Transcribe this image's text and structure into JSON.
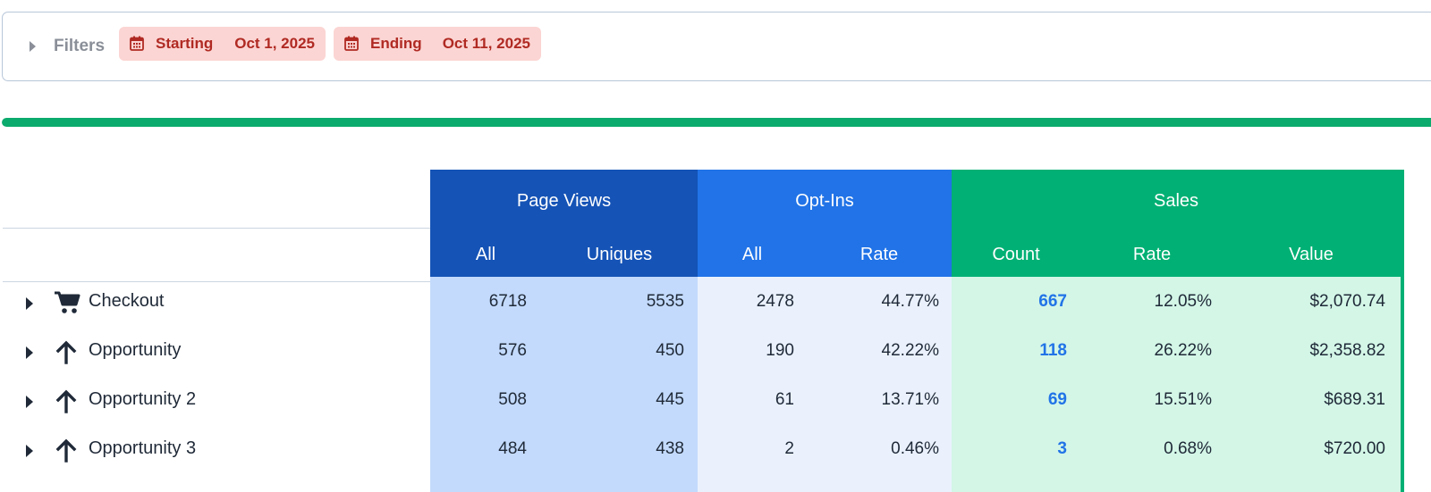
{
  "filters": {
    "label": "Filters",
    "starting": {
      "key": "Starting",
      "value": "Oct 1, 2025"
    },
    "ending": {
      "key": "Ending",
      "value": "Oct 11, 2025"
    }
  },
  "progress": {
    "fraction": 1.0,
    "color": "#0bab6d"
  },
  "colors": {
    "page_views": "#1553b6",
    "opt_ins": "#2173e7",
    "sales": "#00b074",
    "chip_bg": "#fbd5d3",
    "chip_text": "#b02a23",
    "link": "#2173e7"
  },
  "table": {
    "groups": {
      "page_views": {
        "title": "Page Views",
        "cols": [
          "All",
          "Uniques"
        ]
      },
      "opt_ins": {
        "title": "Opt-Ins",
        "cols": [
          "All",
          "Rate"
        ]
      },
      "sales": {
        "title": "Sales",
        "cols": [
          "Count",
          "Rate",
          "Value"
        ]
      }
    },
    "rows": [
      {
        "icon": "cart-icon",
        "name": "Checkout",
        "pv_all": "6718",
        "pv_uniques": "5535",
        "oi_all": "2478",
        "oi_rate": "44.77%",
        "sales_count": "667",
        "sales_rate": "12.05%",
        "sales_value": "$2,070.74"
      },
      {
        "icon": "arrow-up-icon",
        "name": "Opportunity",
        "pv_all": "576",
        "pv_uniques": "450",
        "oi_all": "190",
        "oi_rate": "42.22%",
        "sales_count": "118",
        "sales_rate": "26.22%",
        "sales_value": "$2,358.82"
      },
      {
        "icon": "arrow-up-icon",
        "name": "Opportunity 2",
        "pv_all": "508",
        "pv_uniques": "445",
        "oi_all": "61",
        "oi_rate": "13.71%",
        "sales_count": "69",
        "sales_rate": "15.51%",
        "sales_value": "$689.31"
      },
      {
        "icon": "arrow-up-icon",
        "name": "Opportunity 3",
        "pv_all": "484",
        "pv_uniques": "438",
        "oi_all": "2",
        "oi_rate": "0.46%",
        "sales_count": "3",
        "sales_rate": "0.68%",
        "sales_value": "$720.00"
      }
    ]
  }
}
